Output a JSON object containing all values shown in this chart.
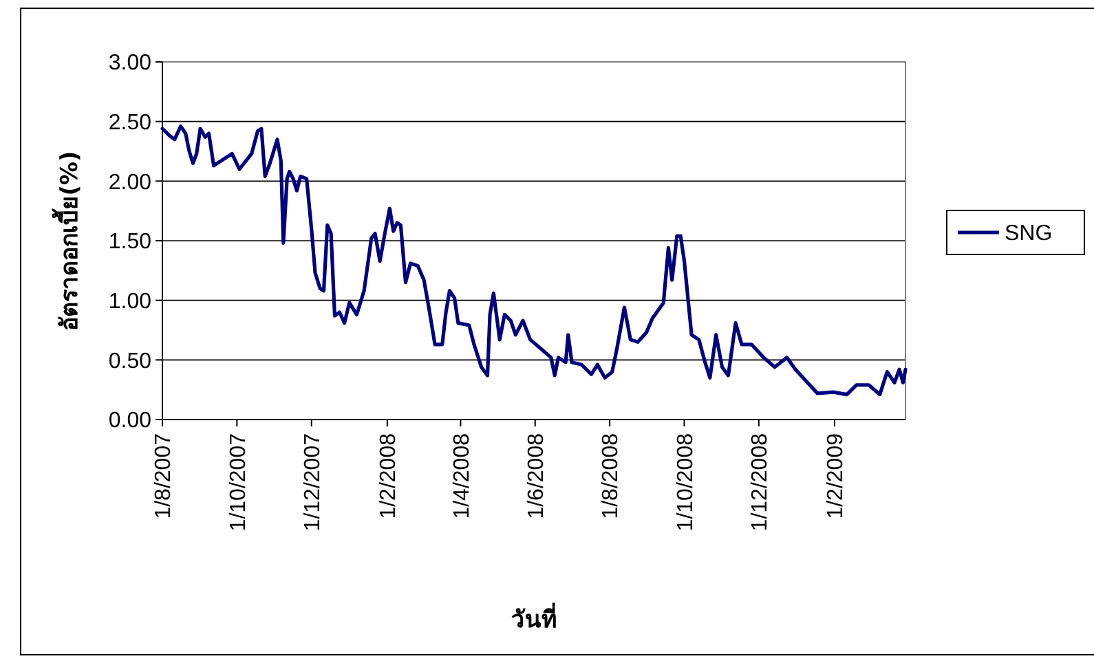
{
  "chart_data": {
    "type": "line",
    "xlabel": "วันที่",
    "ylabel": "อัตราดอกเบี้ย(%)",
    "legend": "right",
    "grid": "y",
    "line_style": "solid",
    "marker": "none",
    "xlim": [
      "2007-08-01",
      "2009-03-31"
    ],
    "xticks": [
      {
        "value": "2007-08-01",
        "label": "1/8/2007"
      },
      {
        "value": "2007-10-01",
        "label": "1/10/2007"
      },
      {
        "value": "2007-12-01",
        "label": "1/12/2007"
      },
      {
        "value": "2008-02-01",
        "label": "1/2/2008"
      },
      {
        "value": "2008-04-01",
        "label": "1/4/2008"
      },
      {
        "value": "2008-06-01",
        "label": "1/6/2008"
      },
      {
        "value": "2008-08-01",
        "label": "1/8/2008"
      },
      {
        "value": "2008-10-01",
        "label": "1/10/2008"
      },
      {
        "value": "2008-12-01",
        "label": "1/12/2008"
      },
      {
        "value": "2009-02-01",
        "label": "1/2/2009"
      }
    ],
    "ylim": [
      0,
      3
    ],
    "yticks": [
      {
        "value": 0,
        "label": "0.00"
      },
      {
        "value": 0.5,
        "label": "0.50"
      },
      {
        "value": 1,
        "label": "1.00"
      },
      {
        "value": 1.5,
        "label": "1.50"
      },
      {
        "value": 2,
        "label": "2.00"
      },
      {
        "value": 2.5,
        "label": "2.50"
      },
      {
        "value": 3,
        "label": "3.00"
      }
    ],
    "x": [
      "2007-08-01",
      "2007-08-07",
      "2007-08-11",
      "2007-08-16",
      "2007-08-20",
      "2007-08-23",
      "2007-08-26",
      "2007-08-29",
      "2007-09-01",
      "2007-09-05",
      "2007-09-08",
      "2007-09-12",
      "2007-09-18",
      "2007-09-27",
      "2007-10-03",
      "2007-10-13",
      "2007-10-18",
      "2007-10-21",
      "2007-10-24",
      "2007-10-28",
      "2007-11-03",
      "2007-11-06",
      "2007-11-08",
      "2007-11-11",
      "2007-11-13",
      "2007-11-16",
      "2007-11-19",
      "2007-11-22",
      "2007-11-27",
      "2007-12-01",
      "2007-12-04",
      "2007-12-08",
      "2007-12-11",
      "2007-12-14",
      "2007-12-17",
      "2007-12-20",
      "2007-12-24",
      "2007-12-28",
      "2008-01-01",
      "2008-01-07",
      "2008-01-13",
      "2008-01-19",
      "2008-01-22",
      "2008-01-26",
      "2008-01-30",
      "2008-02-03",
      "2008-02-06",
      "2008-02-09",
      "2008-02-12",
      "2008-02-16",
      "2008-02-20",
      "2008-02-26",
      "2008-03-02",
      "2008-03-06",
      "2008-03-11",
      "2008-03-17",
      "2008-03-20",
      "2008-03-23",
      "2008-03-27",
      "2008-03-30",
      "2008-04-08",
      "2008-04-12",
      "2008-04-18",
      "2008-04-23",
      "2008-04-25",
      "2008-04-28",
      "2008-05-03",
      "2008-05-07",
      "2008-05-12",
      "2008-05-16",
      "2008-05-22",
      "2008-05-28",
      "2008-06-05",
      "2008-06-14",
      "2008-06-17",
      "2008-06-20",
      "2008-06-26",
      "2008-06-28",
      "2008-07-01",
      "2008-07-09",
      "2008-07-17",
      "2008-07-22",
      "2008-07-28",
      "2008-08-03",
      "2008-08-07",
      "2008-08-13",
      "2008-08-18",
      "2008-08-24",
      "2008-08-31",
      "2008-09-05",
      "2008-09-14",
      "2008-09-18",
      "2008-09-21",
      "2008-09-25",
      "2008-09-28",
      "2008-10-01",
      "2008-10-07",
      "2008-10-13",
      "2008-10-18",
      "2008-10-22",
      "2008-10-27",
      "2008-11-01",
      "2008-11-06",
      "2008-11-12",
      "2008-11-17",
      "2008-11-25",
      "2008-12-05",
      "2008-12-14",
      "2008-12-24",
      "2008-12-31",
      "2009-01-08",
      "2009-01-18",
      "2009-01-31",
      "2009-02-11",
      "2009-02-19",
      "2009-03-01",
      "2009-03-10",
      "2009-03-16",
      "2009-03-22",
      "2009-03-26",
      "2009-03-29",
      "2009-03-31"
    ],
    "series": [
      {
        "name": "SNG",
        "color": "#000080",
        "values": [
          2.44,
          2.38,
          2.35,
          2.46,
          2.4,
          2.25,
          2.15,
          2.23,
          2.44,
          2.37,
          2.4,
          2.13,
          2.17,
          2.23,
          2.1,
          2.23,
          2.42,
          2.44,
          2.04,
          2.15,
          2.35,
          2.17,
          1.48,
          2.02,
          2.08,
          2.02,
          1.92,
          2.04,
          2.02,
          1.6,
          1.23,
          1.1,
          1.08,
          1.63,
          1.56,
          0.87,
          0.9,
          0.81,
          0.98,
          0.88,
          1.08,
          1.52,
          1.56,
          1.33,
          1.56,
          1.77,
          1.58,
          1.65,
          1.63,
          1.15,
          1.31,
          1.29,
          1.17,
          0.94,
          0.63,
          0.63,
          0.9,
          1.08,
          1.02,
          0.81,
          0.79,
          0.63,
          0.44,
          0.37,
          0.88,
          1.06,
          0.67,
          0.88,
          0.83,
          0.71,
          0.83,
          0.67,
          0.6,
          0.52,
          0.37,
          0.52,
          0.48,
          0.71,
          0.48,
          0.46,
          0.38,
          0.46,
          0.35,
          0.4,
          0.6,
          0.94,
          0.67,
          0.65,
          0.73,
          0.85,
          0.98,
          1.44,
          1.17,
          1.54,
          1.54,
          1.33,
          0.71,
          0.67,
          0.48,
          0.35,
          0.71,
          0.44,
          0.37,
          0.81,
          0.63,
          0.63,
          0.52,
          0.44,
          0.52,
          0.42,
          0.33,
          0.22,
          0.23,
          0.21,
          0.29,
          0.29,
          0.21,
          0.4,
          0.31,
          0.42,
          0.31,
          0.42
        ]
      }
    ]
  }
}
